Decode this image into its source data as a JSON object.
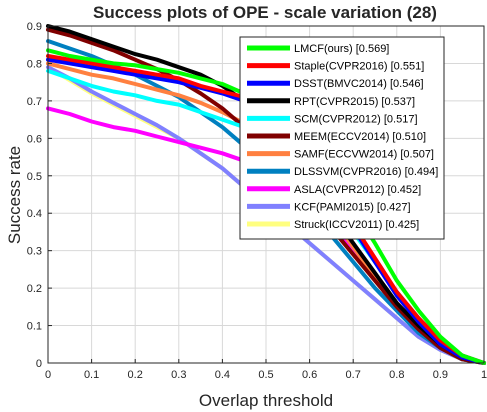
{
  "chart_data": {
    "type": "line",
    "title": "Success plots of OPE - scale variation (28)",
    "xlabel": "Overlap threshold",
    "ylabel": "Success rate",
    "xlim": [
      0,
      1
    ],
    "ylim": [
      0,
      0.9
    ],
    "xticks": [
      "0",
      "0.1",
      "0.2",
      "0.3",
      "0.4",
      "0.5",
      "0.6",
      "0.7",
      "0.8",
      "0.9",
      "1"
    ],
    "yticks": [
      "0",
      "0.1",
      "0.2",
      "0.3",
      "0.4",
      "0.5",
      "0.6",
      "0.7",
      "0.8",
      "0.9"
    ],
    "grid": true,
    "legend_position": "top-right",
    "x": [
      0,
      0.05,
      0.1,
      0.15,
      0.2,
      0.25,
      0.3,
      0.35,
      0.4,
      0.45,
      0.5,
      0.55,
      0.6,
      0.65,
      0.7,
      0.75,
      0.8,
      0.85,
      0.9,
      0.95,
      1
    ],
    "series": [
      {
        "name": "LMCF(ours) [0.569]",
        "color": "#00ff00",
        "width": 4,
        "values": [
          0.835,
          0.82,
          0.81,
          0.8,
          0.795,
          0.785,
          0.775,
          0.76,
          0.745,
          0.72,
          0.69,
          0.64,
          0.57,
          0.49,
          0.41,
          0.32,
          0.22,
          0.14,
          0.07,
          0.02,
          0.0
        ]
      },
      {
        "name": "Staple(CVPR2016) [0.551]",
        "color": "#ff0000",
        "width": 4,
        "values": [
          0.82,
          0.81,
          0.8,
          0.79,
          0.78,
          0.77,
          0.76,
          0.74,
          0.725,
          0.71,
          0.68,
          0.62,
          0.55,
          0.46,
          0.37,
          0.28,
          0.19,
          0.12,
          0.06,
          0.02,
          0.0
        ]
      },
      {
        "name": "DSST(BMVC2014) [0.546]",
        "color": "#0000ff",
        "width": 4,
        "values": [
          0.81,
          0.8,
          0.79,
          0.78,
          0.77,
          0.76,
          0.75,
          0.735,
          0.72,
          0.7,
          0.67,
          0.61,
          0.54,
          0.45,
          0.36,
          0.27,
          0.18,
          0.11,
          0.05,
          0.015,
          0.0
        ]
      },
      {
        "name": "RPT(CVPR2015) [0.537]",
        "color": "#000000",
        "width": 4,
        "values": [
          0.9,
          0.885,
          0.865,
          0.845,
          0.825,
          0.81,
          0.79,
          0.77,
          0.74,
          0.7,
          0.64,
          0.56,
          0.48,
          0.4,
          0.32,
          0.24,
          0.16,
          0.1,
          0.05,
          0.015,
          0.0
        ]
      },
      {
        "name": "SCM(CVPR2012) [0.517]",
        "color": "#00ffff",
        "width": 4,
        "values": [
          0.78,
          0.76,
          0.74,
          0.725,
          0.715,
          0.7,
          0.69,
          0.67,
          0.65,
          0.63,
          0.6,
          0.55,
          0.49,
          0.42,
          0.35,
          0.27,
          0.19,
          0.12,
          0.06,
          0.02,
          0.0
        ]
      },
      {
        "name": "MEEM(ECCV2014) [0.510]",
        "color": "#800000",
        "width": 4,
        "values": [
          0.89,
          0.875,
          0.855,
          0.835,
          0.81,
          0.785,
          0.755,
          0.72,
          0.68,
          0.63,
          0.57,
          0.5,
          0.43,
          0.36,
          0.29,
          0.22,
          0.15,
          0.09,
          0.04,
          0.01,
          0.0
        ]
      },
      {
        "name": "SAMF(ECCVW2014) [0.507]",
        "color": "#ff8040",
        "width": 4,
        "values": [
          0.8,
          0.785,
          0.77,
          0.76,
          0.745,
          0.73,
          0.715,
          0.695,
          0.67,
          0.64,
          0.6,
          0.54,
          0.47,
          0.39,
          0.31,
          0.23,
          0.16,
          0.1,
          0.05,
          0.015,
          0.0
        ]
      },
      {
        "name": "DLSSVM(CVPR2016) [0.494]",
        "color": "#0080c0",
        "width": 4,
        "values": [
          0.86,
          0.84,
          0.82,
          0.795,
          0.77,
          0.74,
          0.71,
          0.67,
          0.63,
          0.58,
          0.53,
          0.47,
          0.41,
          0.34,
          0.27,
          0.2,
          0.14,
          0.08,
          0.04,
          0.01,
          0.0
        ]
      },
      {
        "name": "ASLA(CVPR2012) [0.452]",
        "color": "#ff00ff",
        "width": 4,
        "values": [
          0.68,
          0.665,
          0.645,
          0.63,
          0.62,
          0.605,
          0.59,
          0.575,
          0.56,
          0.54,
          0.515,
          0.48,
          0.43,
          0.37,
          0.3,
          0.23,
          0.16,
          0.1,
          0.05,
          0.02,
          0.0
        ]
      },
      {
        "name": "KCF(PAMI2015) [0.427]",
        "color": "#8080ff",
        "width": 4,
        "values": [
          0.79,
          0.76,
          0.725,
          0.695,
          0.665,
          0.635,
          0.6,
          0.56,
          0.52,
          0.47,
          0.42,
          0.37,
          0.32,
          0.27,
          0.22,
          0.17,
          0.12,
          0.07,
          0.035,
          0.01,
          0.0
        ]
      },
      {
        "name": "Struck(ICCV2011) [0.425]",
        "color": "#ffff80",
        "width": 4,
        "values": [
          0.79,
          0.755,
          0.72,
          0.69,
          0.66,
          0.63,
          0.6,
          0.56,
          0.52,
          0.47,
          0.42,
          0.37,
          0.32,
          0.27,
          0.22,
          0.17,
          0.12,
          0.07,
          0.035,
          0.01,
          0.0
        ]
      }
    ]
  }
}
